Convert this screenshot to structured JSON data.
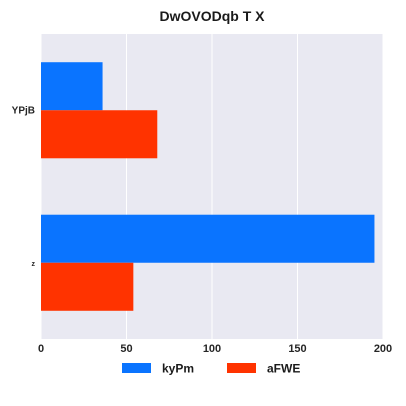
{
  "chart_data": {
    "type": "bar",
    "orientation": "horizontal",
    "title": "DwOVODqb T X",
    "xlabel": "",
    "ylabel": "",
    "categories": [
      "YPjB",
      "z"
    ],
    "series": [
      {
        "name": "kyPm",
        "color": "#0a74ff",
        "values": [
          36,
          195
        ]
      },
      {
        "name": "aFWE",
        "color": "#ff3300",
        "values": [
          68,
          54
        ]
      }
    ],
    "xlim": [
      0,
      200
    ],
    "xticks": [
      0,
      50,
      100,
      150,
      200
    ],
    "grid": true,
    "legend": "bottom-center",
    "background": "#e9e9f2"
  }
}
